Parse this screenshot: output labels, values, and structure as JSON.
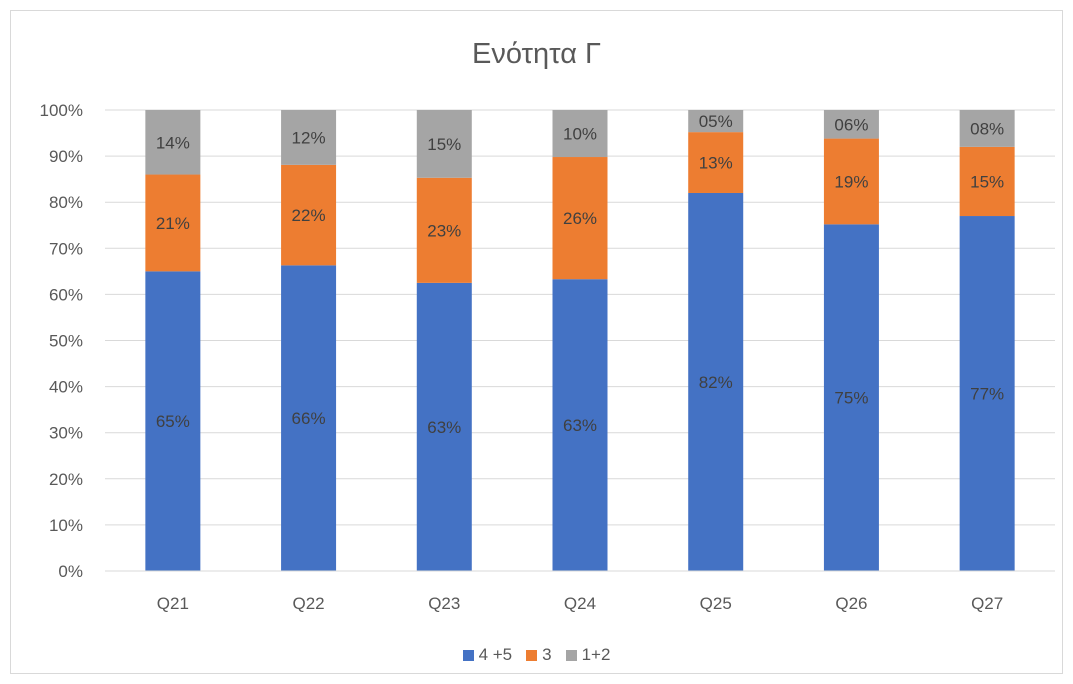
{
  "chart_data": {
    "type": "bar",
    "stacked": true,
    "title": "Ενότητα Γ",
    "categories": [
      "Q21",
      "Q22",
      "Q23",
      "Q24",
      "Q25",
      "Q26",
      "Q27"
    ],
    "ylim": [
      0,
      100
    ],
    "yticks": [
      "0%",
      "10%",
      "20%",
      "30%",
      "40%",
      "50%",
      "60%",
      "70%",
      "80%",
      "90%",
      "100%"
    ],
    "grid": true,
    "legend_position": "bottom",
    "series": [
      {
        "name": "4 +5",
        "color": "#4472c4",
        "values": [
          65,
          66.3,
          62.5,
          63.3,
          82,
          75.2,
          77
        ],
        "labels": [
          "65%",
          "66%",
          "63%",
          "63%",
          "82%",
          "75%",
          "77%"
        ]
      },
      {
        "name": "3",
        "color": "#ed7d31",
        "values": [
          21,
          21.8,
          22.8,
          26.5,
          13.2,
          18.6,
          15
        ],
        "labels": [
          "21%",
          "22%",
          "23%",
          "26%",
          "13%",
          "19%",
          "15%"
        ]
      },
      {
        "name": "1+2",
        "color": "#a5a5a5",
        "values": [
          14,
          11.9,
          14.7,
          10.2,
          4.8,
          6.2,
          8
        ],
        "labels": [
          "14%",
          "12%",
          "15%",
          "10%",
          "05%",
          "06%",
          "08%"
        ]
      }
    ]
  }
}
